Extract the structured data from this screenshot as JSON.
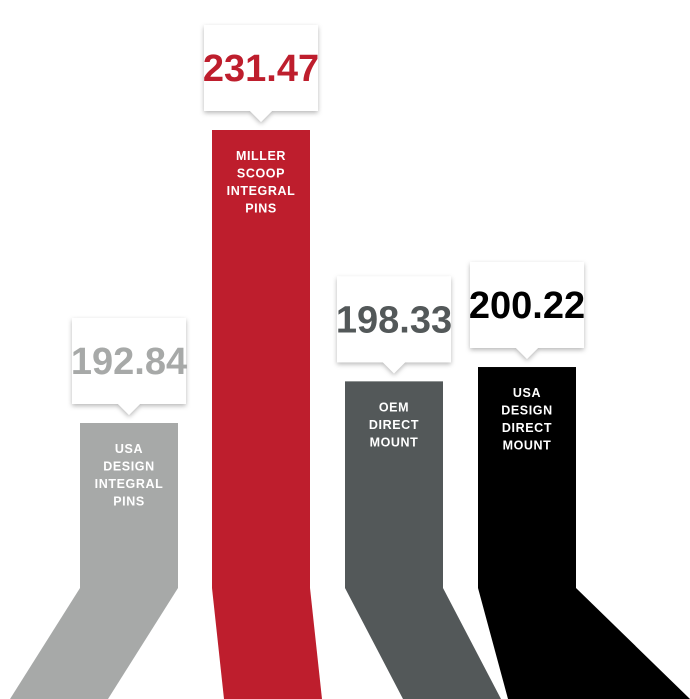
{
  "chart_data": {
    "type": "bar",
    "bars": [
      {
        "lines": [
          "USA",
          "DESIGN",
          "INTEGRAL",
          "PINS"
        ],
        "value": 192.84,
        "value_label": "192.84",
        "color": "#a7a9a8",
        "text_color": "#a7a9a8"
      },
      {
        "lines": [
          "MILLER",
          "SCOOP",
          "INTEGRAL",
          "PINS"
        ],
        "value": 231.47,
        "value_label": "231.47",
        "color": "#be1e2d",
        "text_color": "#be1e2d"
      },
      {
        "lines": [
          "OEM",
          "DIRECT",
          "MOUNT"
        ],
        "value": 198.33,
        "value_label": "198.33",
        "color": "#535859",
        "text_color": "#535859"
      },
      {
        "lines": [
          "USA",
          "DESIGN",
          "DIRECT",
          "MOUNT"
        ],
        "value": 200.22,
        "value_label": "200.22",
        "color": "#000000",
        "text_color": "#000000"
      }
    ]
  }
}
